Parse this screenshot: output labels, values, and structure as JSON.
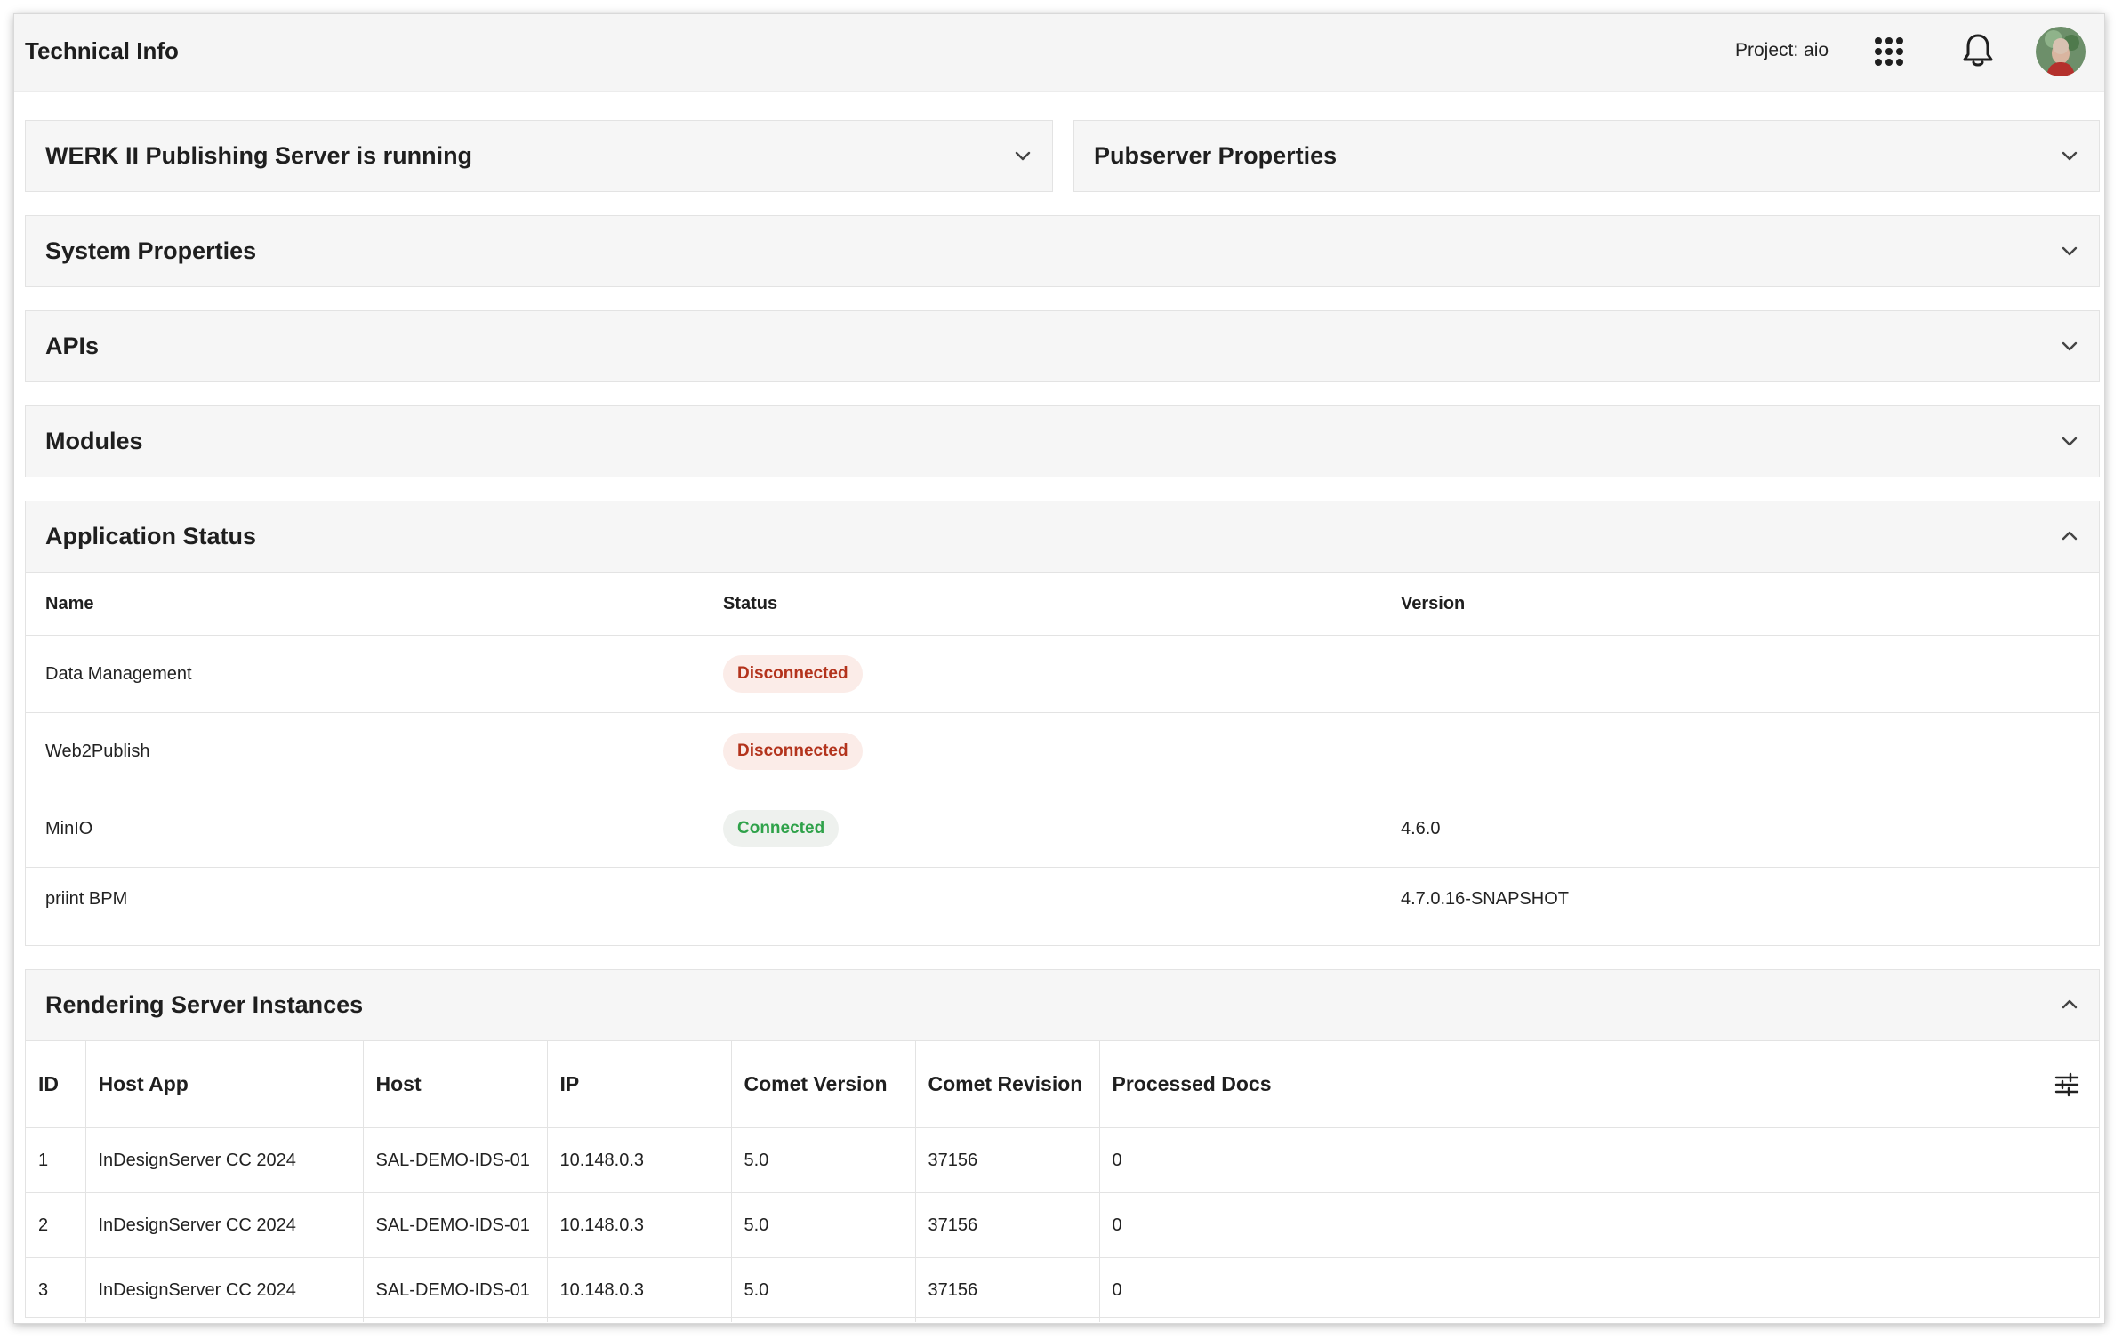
{
  "header": {
    "title": "Technical Info",
    "project_label": "Project: aio",
    "icons": [
      "apps-grid-icon",
      "bell-icon",
      "avatar"
    ]
  },
  "panels": {
    "publishing_server": {
      "title": "WERK II Publishing Server is running",
      "expanded": false
    },
    "pubserver_properties": {
      "title": "Pubserver Properties",
      "expanded": false
    },
    "system_properties": {
      "title": "System Properties",
      "expanded": false
    },
    "apis": {
      "title": "APIs",
      "expanded": false
    },
    "modules": {
      "title": "Modules",
      "expanded": false
    },
    "application_status": {
      "title": "Application Status",
      "expanded": true,
      "columns": [
        "Name",
        "Status",
        "Version"
      ],
      "rows": [
        {
          "name": "Data Management",
          "status": "Disconnected",
          "status_type": "error",
          "version": ""
        },
        {
          "name": "Web2Publish",
          "status": "Disconnected",
          "status_type": "error",
          "version": ""
        },
        {
          "name": "MinIO",
          "status": "Connected",
          "status_type": "success",
          "version": "4.6.0"
        },
        {
          "name": "priint BPM",
          "status": "",
          "status_type": "none",
          "version": "4.7.0.16-SNAPSHOT"
        }
      ]
    },
    "rendering_servers": {
      "title": "Rendering Server Instances",
      "expanded": true,
      "columns": [
        "ID",
        "Host App",
        "Host",
        "IP",
        "Comet Version",
        "Comet Revision",
        "Processed Docs"
      ],
      "rows": [
        [
          "1",
          "InDesignServer CC 2024",
          "SAL-DEMO-IDS-01",
          "10.148.0.3",
          "5.0",
          "37156",
          "0"
        ],
        [
          "2",
          "InDesignServer CC 2024",
          "SAL-DEMO-IDS-01",
          "10.148.0.3",
          "5.0",
          "37156",
          "0"
        ],
        [
          "3",
          "InDesignServer CC 2024",
          "SAL-DEMO-IDS-01",
          "10.148.0.3",
          "5.0",
          "37156",
          "0"
        ]
      ]
    }
  },
  "colors": {
    "error_text": "#b3331c",
    "error_bg": "#fbece8",
    "success_text": "#2fa24a",
    "success_bg": "#eef1ee",
    "panel_bg": "#f6f6f6"
  }
}
